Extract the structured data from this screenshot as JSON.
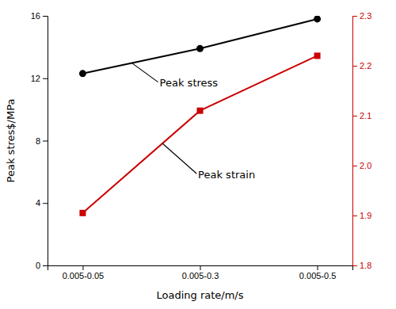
{
  "chart_data": {
    "type": "line",
    "xlabel": "Loading rate/m/s",
    "ylabel": "Peak stres$/MPa",
    "categories": [
      "0.005-0.05",
      "0.005-0.3",
      "0.005-0.5"
    ],
    "series": [
      {
        "name": "Peak stress",
        "color": "#000000",
        "marker": "circle",
        "values": [
          12.3,
          13.9,
          15.8
        ]
      },
      {
        "name": "Peak strain",
        "color": "#cc0000",
        "marker": "square",
        "axis": "y2",
        "values": [
          1.905,
          2.11,
          2.22
        ]
      }
    ],
    "ylim": [
      0,
      16
    ],
    "yticks": [
      0,
      4,
      8,
      12,
      16
    ],
    "y2lim": [
      1.8,
      2.3
    ],
    "y2ticks": [
      {
        "value": 1.8,
        "label": "1.8"
      },
      {
        "value": 1.9,
        "label": "1.9"
      },
      {
        "value": 2.0,
        "label": "2.0"
      },
      {
        "value": 2.1,
        "label": "2.1"
      },
      {
        "value": 2.2,
        "label": "2.2"
      },
      {
        "value": 2.3,
        "label": "2.3"
      }
    ],
    "grid": false
  }
}
